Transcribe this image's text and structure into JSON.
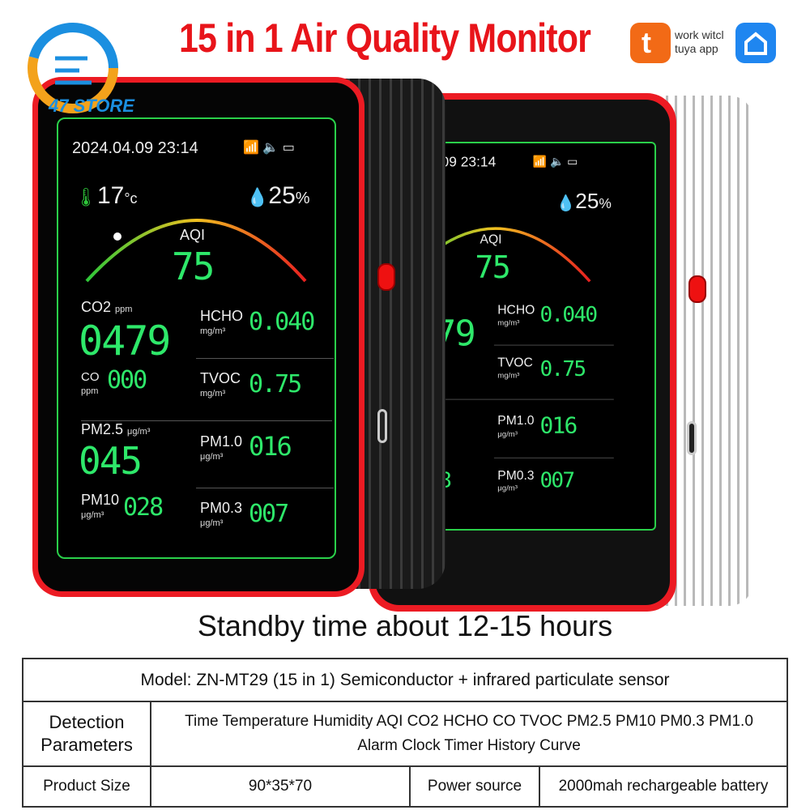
{
  "brand": {
    "store_name": "47 STORE"
  },
  "title": "15 in 1 Air Quality Monitor",
  "badges": {
    "tuya_text": "work witcl tuya app",
    "tuya_icon": "tuya-logo-icon",
    "smart_icon": "smart-home-icon"
  },
  "colors": {
    "title": "#e8141a",
    "digits": "#2ee86a",
    "frame": "#ec1b23"
  },
  "screen": {
    "datetime": "2024.04.09 23:14",
    "status_icons": [
      "wifi-icon",
      "speaker-icon",
      "battery-icon"
    ],
    "temperature": "17",
    "temp_unit": "°c",
    "humidity": "25",
    "humidity_unit": "%",
    "aqi_label": "AQI",
    "aqi_value": "75",
    "co2": {
      "label": "CO2",
      "unit": "ppm",
      "value": "0479"
    },
    "hcho": {
      "label": "HCHO",
      "unit": "mg/m³",
      "value": "0.040"
    },
    "co": {
      "label": "CO",
      "unit": "ppm",
      "value": "000"
    },
    "tvoc": {
      "label": "TVOC",
      "unit": "mg/m³",
      "value": "0.75"
    },
    "pm25": {
      "label": "PM2.5",
      "unit": "μg/m³",
      "value": "045"
    },
    "pm10_": {
      "label": "PM1.0",
      "unit": "μg/m³",
      "value": "016"
    },
    "pm10": {
      "label": "PM10",
      "unit": "μg/m³",
      "value": "028"
    },
    "pm03": {
      "label": "PM0.3",
      "unit": "μg/m³",
      "value": "007"
    }
  },
  "tagline": "Standby time about 12-15 hours",
  "specs": {
    "model": "Model: ZN-MT29 (15 in 1) Semiconductor + infrared particulate sensor",
    "detection_label": "Detection Parameters",
    "detection_value": "Time Temperature Humidity AQI CO2 HCHO CO TVOC PM2.5 PM10 PM0.3 PM1.0 Alarm Clock Timer History Curve",
    "size_label": "Product Size",
    "size_value": "90*35*70",
    "power_label": "Power source",
    "power_value": "2000mah rechargeable battery"
  }
}
